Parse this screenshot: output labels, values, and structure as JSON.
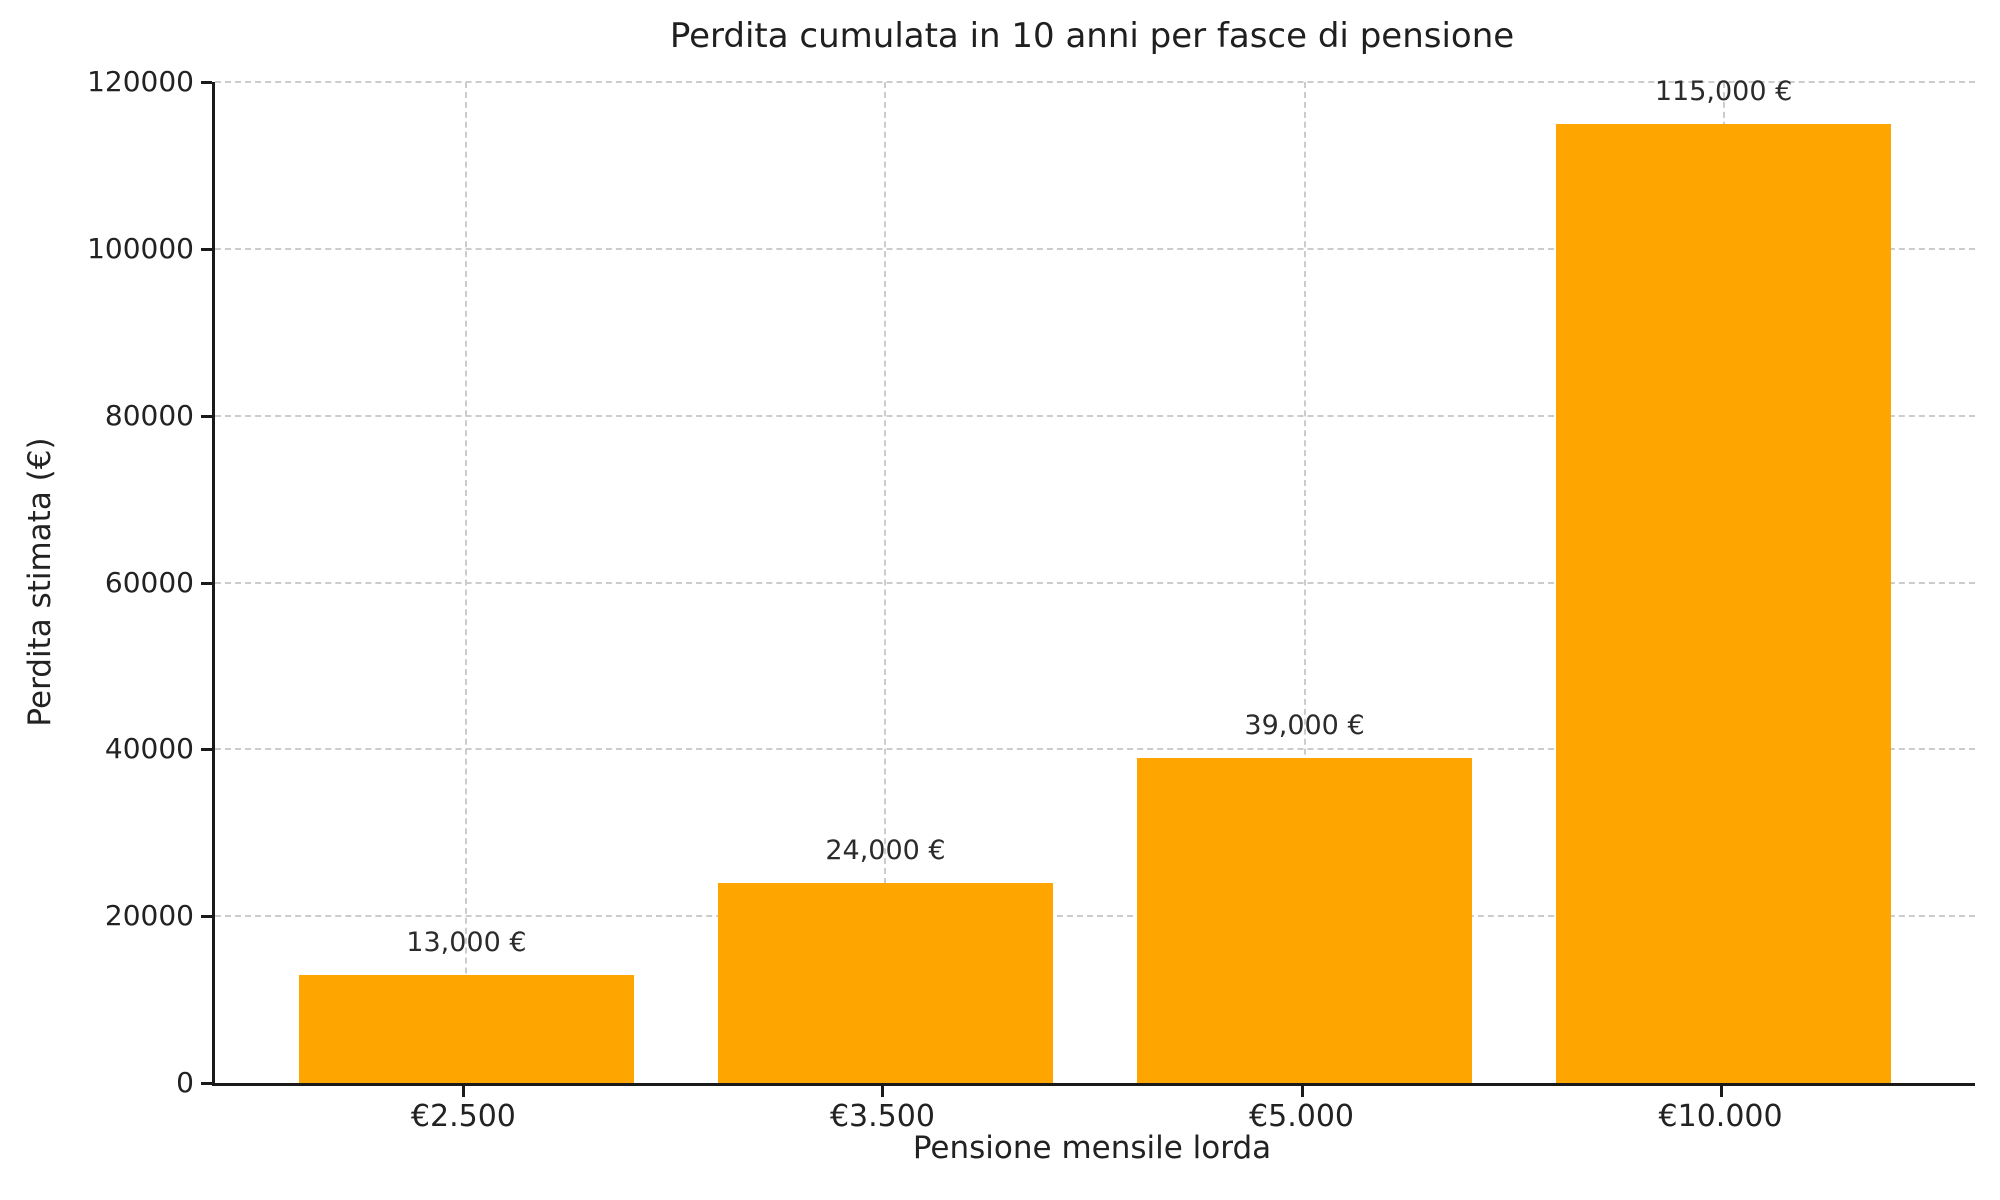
{
  "chart_data": {
    "type": "bar",
    "title": "Perdita cumulata in 10 anni per fasce di pensione",
    "xlabel": "Pensione mensile lorda",
    "ylabel": "Perdita stimata (€)",
    "categories": [
      "€2.500",
      "€3.500",
      "€5.000",
      "€10.000"
    ],
    "values": [
      13000,
      24000,
      39000,
      115000
    ],
    "value_labels": [
      "13,000 €",
      "24,000 €",
      "39,000 €",
      "115,000 €"
    ],
    "yticks": [
      0,
      20000,
      40000,
      60000,
      80000,
      100000,
      120000
    ],
    "ytick_labels": [
      "0",
      "20000",
      "40000",
      "60000",
      "80000",
      "100000",
      "120000"
    ],
    "ylim": [
      0,
      120000
    ],
    "grid": "both-axes, dashed, light-gray",
    "legend": "none",
    "bar_color": "#FFA500",
    "grid_color": "#cccccc",
    "axis_color": "#1a1a1a",
    "text_color": "#222222",
    "background_color": "#ffffff"
  }
}
